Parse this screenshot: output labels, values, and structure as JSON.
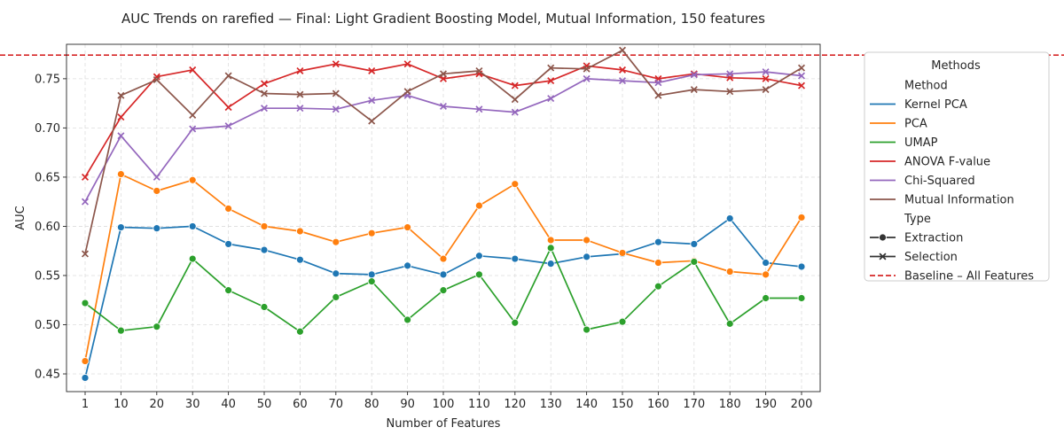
{
  "chart_data": {
    "type": "line",
    "title": "AUC Trends on rarefied — Final: Light Gradient Boosting Model, Mutual Information, 150 features",
    "xlabel": "Number of Features",
    "ylabel": "AUC",
    "categories": [
      "1",
      "10",
      "20",
      "30",
      "40",
      "50",
      "60",
      "70",
      "80",
      "90",
      "100",
      "110",
      "120",
      "130",
      "140",
      "150",
      "160",
      "170",
      "180",
      "190",
      "200"
    ],
    "ylim": [
      0.432,
      0.785
    ],
    "yticks": [
      "0.45",
      "0.50",
      "0.55",
      "0.60",
      "0.65",
      "0.70",
      "0.75"
    ],
    "grid": true,
    "baseline": {
      "label": "Baseline – All Features",
      "value": 0.774,
      "color": "#d62728"
    },
    "series": [
      {
        "name": "Kernel PCA",
        "type": "Extraction",
        "color": "#1f77b4",
        "values": [
          0.446,
          0.599,
          0.598,
          0.6,
          0.582,
          0.576,
          0.566,
          0.552,
          0.551,
          0.56,
          0.551,
          0.57,
          0.567,
          0.562,
          0.569,
          0.572,
          0.584,
          0.582,
          0.608,
          0.563,
          0.559
        ]
      },
      {
        "name": "PCA",
        "type": "Extraction",
        "color": "#ff7f0e",
        "values": [
          0.463,
          0.653,
          0.636,
          0.647,
          0.618,
          0.6,
          0.595,
          0.584,
          0.593,
          0.599,
          0.567,
          0.621,
          0.643,
          0.586,
          0.586,
          0.573,
          0.563,
          0.565,
          0.554,
          0.551,
          0.609
        ]
      },
      {
        "name": "UMAP",
        "type": "Extraction",
        "color": "#2ca02c",
        "values": [
          0.522,
          0.494,
          0.498,
          0.567,
          0.535,
          0.518,
          0.493,
          0.528,
          0.544,
          0.505,
          0.535,
          0.551,
          0.502,
          0.578,
          0.495,
          0.503,
          0.539,
          0.564,
          0.501,
          0.527,
          0.527
        ]
      },
      {
        "name": "ANOVA F-value",
        "type": "Selection",
        "color": "#d62728",
        "values": [
          0.65,
          0.711,
          0.752,
          0.759,
          0.721,
          0.745,
          0.758,
          0.765,
          0.758,
          0.765,
          0.75,
          0.755,
          0.743,
          0.748,
          0.763,
          0.759,
          0.75,
          0.755,
          0.751,
          0.75,
          0.743
        ]
      },
      {
        "name": "Chi-Squared",
        "type": "Selection",
        "color": "#9467bd",
        "values": [
          0.625,
          0.692,
          0.65,
          0.699,
          0.702,
          0.72,
          0.72,
          0.719,
          0.728,
          0.733,
          0.722,
          0.719,
          0.716,
          0.73,
          0.75,
          0.748,
          0.746,
          0.754,
          0.755,
          0.757,
          0.753
        ]
      },
      {
        "name": "Mutual Information",
        "type": "Selection",
        "color": "#8c564b",
        "values": [
          0.572,
          0.733,
          0.749,
          0.713,
          0.753,
          0.735,
          0.734,
          0.735,
          0.707,
          0.737,
          0.755,
          0.758,
          0.729,
          0.761,
          0.76,
          0.779,
          0.733,
          0.739,
          0.737,
          0.739,
          0.761
        ]
      }
    ],
    "legend": {
      "placement": "outside-right",
      "title": "Methods",
      "method_header": "Method",
      "type_header": "Type",
      "type_entries": [
        {
          "label": "Extraction",
          "marker": "circle"
        },
        {
          "label": "Selection",
          "marker": "x"
        }
      ]
    }
  }
}
